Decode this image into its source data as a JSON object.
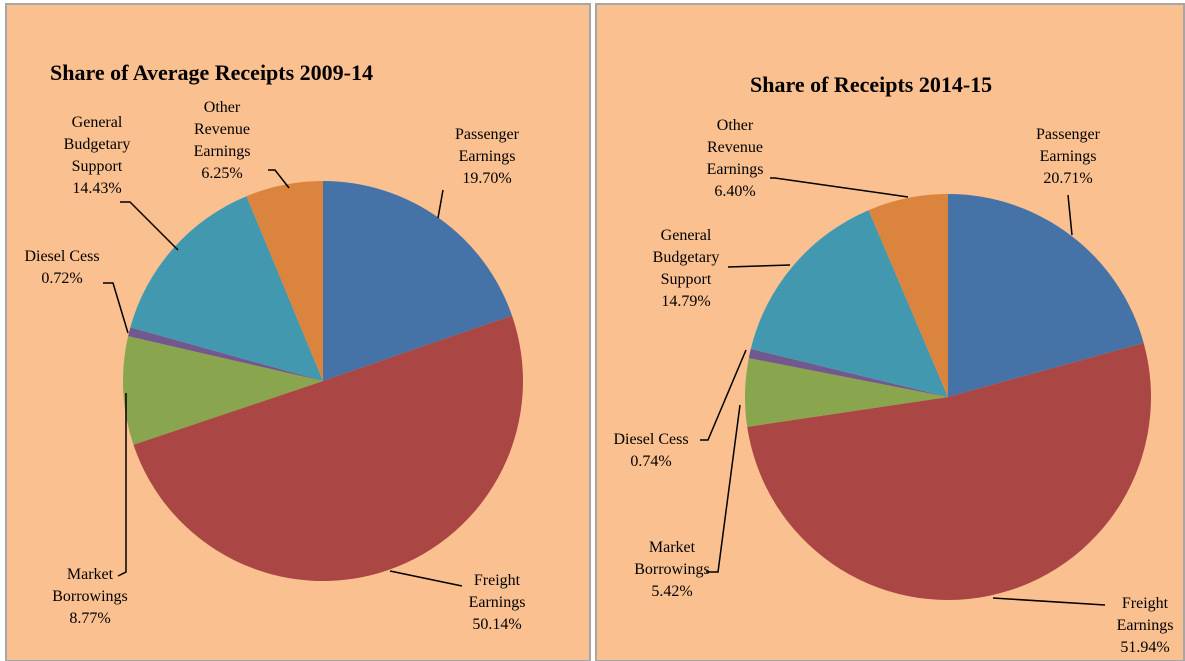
{
  "chart_data": [
    {
      "type": "pie",
      "title": "Share of Average Receipts 2009-14",
      "categories": [
        "Passenger Earnings",
        "Freight Earnings",
        "Market Borrowings",
        "Diesel Cess",
        "General Budgetary Support",
        "Other Revenue Earnings"
      ],
      "values": [
        19.7,
        50.14,
        8.77,
        0.72,
        14.43,
        6.25
      ],
      "value_labels": [
        "19.70%",
        "50.14%",
        "8.77%",
        "0.72%",
        "14.43%",
        "6.25%"
      ],
      "colors": [
        "#4572a7",
        "#aa4643",
        "#89a54e",
        "#71588f",
        "#4198af",
        "#db843d"
      ]
    },
    {
      "type": "pie",
      "title": "Share of Receipts 2014-15",
      "categories": [
        "Passenger Earnings",
        "Freight Earnings",
        "Market Borrowings",
        "Diesel Cess",
        "General Budgetary Support",
        "Other Revenue Earnings"
      ],
      "values": [
        20.71,
        51.94,
        5.42,
        0.74,
        14.79,
        6.4
      ],
      "value_labels": [
        "20.71%",
        "51.94%",
        "5.42%",
        "0.74%",
        "14.79%",
        "6.40%"
      ],
      "colors": [
        "#4572a7",
        "#aa4643",
        "#89a54e",
        "#71588f",
        "#4198af",
        "#db843d"
      ]
    }
  ]
}
